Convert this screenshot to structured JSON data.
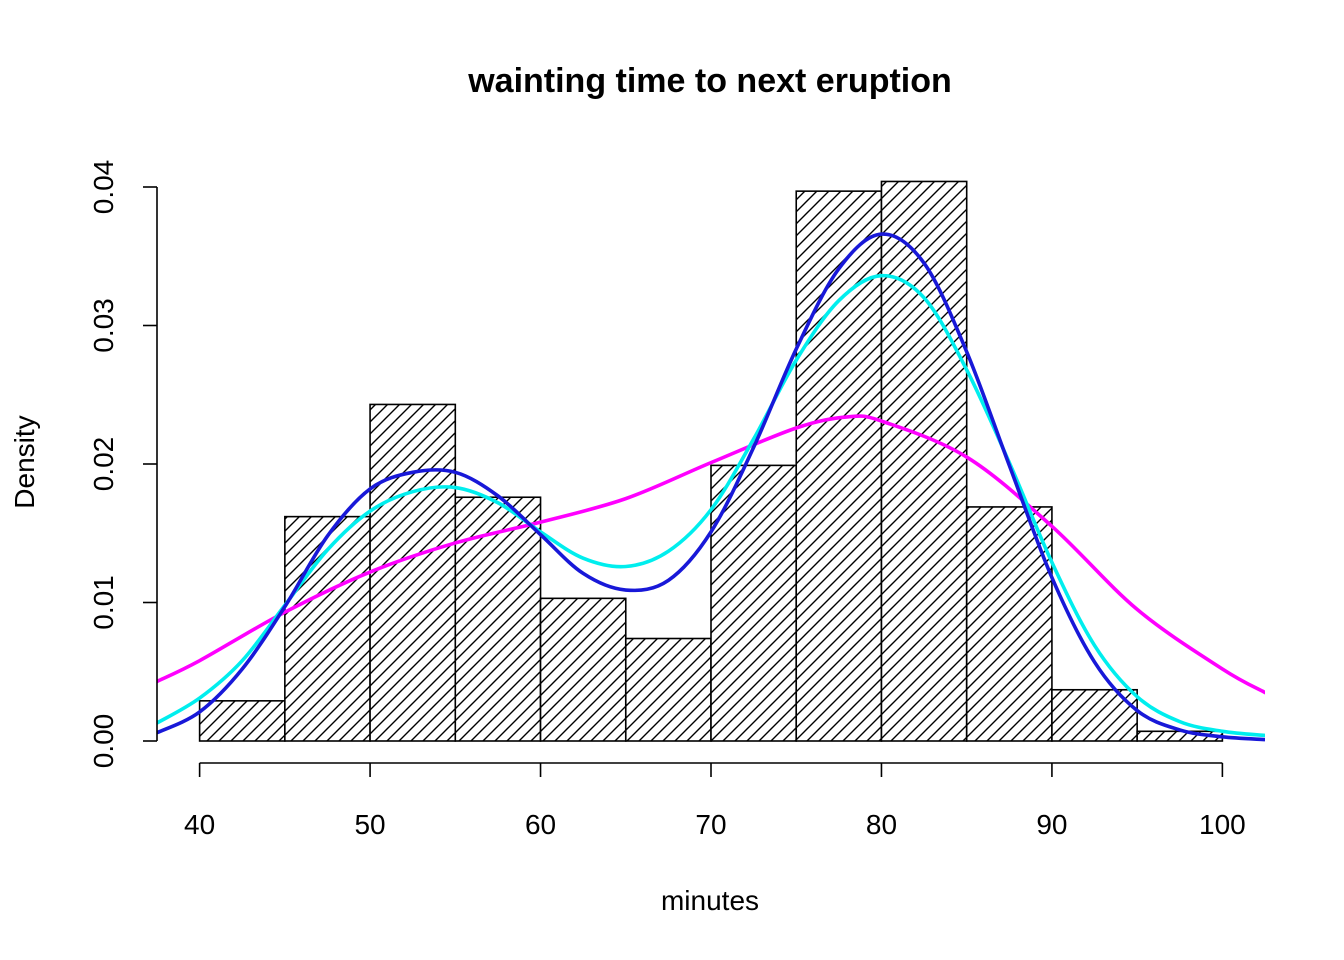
{
  "chart_data": {
    "type": "bar",
    "title": "wainting time to next eruption",
    "xlabel": "minutes",
    "ylabel": "Density",
    "xlim": [
      37.5,
      102.5
    ],
    "ylim": [
      0,
      0.04
    ],
    "x_ticks": [
      40,
      50,
      60,
      70,
      80,
      90,
      100
    ],
    "y_ticks": [
      0.0,
      0.01,
      0.02,
      0.03,
      0.04
    ],
    "x_tick_labels": [
      "40",
      "50",
      "60",
      "70",
      "80",
      "90",
      "100"
    ],
    "y_tick_labels": [
      "0.00",
      "0.01",
      "0.02",
      "0.03",
      "0.04"
    ],
    "grid": false,
    "histogram": {
      "fill": "diagonal hatch",
      "bins": [
        {
          "from": 40,
          "to": 45,
          "density": 0.0029
        },
        {
          "from": 45,
          "to": 50,
          "density": 0.0162
        },
        {
          "from": 50,
          "to": 55,
          "density": 0.0243
        },
        {
          "from": 55,
          "to": 60,
          "density": 0.0176
        },
        {
          "from": 60,
          "to": 65,
          "density": 0.0103
        },
        {
          "from": 65,
          "to": 70,
          "density": 0.0074
        },
        {
          "from": 70,
          "to": 75,
          "density": 0.0199
        },
        {
          "from": 75,
          "to": 80,
          "density": 0.0397
        },
        {
          "from": 80,
          "to": 85,
          "density": 0.0404
        },
        {
          "from": 85,
          "to": 90,
          "density": 0.0169
        },
        {
          "from": 90,
          "to": 95,
          "density": 0.0037
        },
        {
          "from": 95,
          "to": 100,
          "density": 0.0007
        }
      ]
    },
    "series": [
      {
        "color": "#ff00ff",
        "x": [
          37.5,
          40,
          45,
          50,
          55,
          60,
          65,
          70,
          75,
          78,
          80,
          85,
          90,
          95,
          100,
          102.5
        ],
        "values": [
          0.0043,
          0.0058,
          0.0093,
          0.0122,
          0.0143,
          0.0158,
          0.0175,
          0.0201,
          0.0226,
          0.0234,
          0.0231,
          0.0205,
          0.0155,
          0.0095,
          0.0052,
          0.0035
        ]
      },
      {
        "color": "#00eeee",
        "x": [
          37.5,
          40,
          42.5,
          45,
          47.5,
          50,
          52.5,
          55,
          57.5,
          60,
          62.5,
          65,
          67.5,
          70,
          72.5,
          75,
          77.5,
          80,
          82.5,
          85,
          87.5,
          90,
          92.5,
          95,
          97.5,
          100,
          102.5
        ],
        "values": [
          0.0013,
          0.0031,
          0.0058,
          0.0098,
          0.0138,
          0.0166,
          0.018,
          0.0183,
          0.0172,
          0.0151,
          0.0132,
          0.0126,
          0.0137,
          0.0167,
          0.0218,
          0.0275,
          0.0318,
          0.0336,
          0.032,
          0.0268,
          0.0201,
          0.0129,
          0.0069,
          0.0032,
          0.0014,
          0.0007,
          0.0004
        ]
      },
      {
        "color": "#1818d8",
        "x": [
          37.5,
          40,
          42.5,
          45,
          47.5,
          50,
          52.5,
          55,
          57.5,
          60,
          62.5,
          65,
          67.5,
          70,
          72.5,
          75,
          77.5,
          80,
          82.5,
          85,
          87.5,
          90,
          92.5,
          95,
          97.5,
          100,
          102.5
        ],
        "values": [
          0.0006,
          0.0021,
          0.0052,
          0.0097,
          0.0148,
          0.0182,
          0.0194,
          0.0194,
          0.0177,
          0.0149,
          0.0121,
          0.0109,
          0.0116,
          0.0151,
          0.0212,
          0.0283,
          0.0341,
          0.0366,
          0.0345,
          0.0281,
          0.0199,
          0.0118,
          0.0057,
          0.0022,
          0.0008,
          0.0003,
          0.0001
        ]
      }
    ]
  }
}
